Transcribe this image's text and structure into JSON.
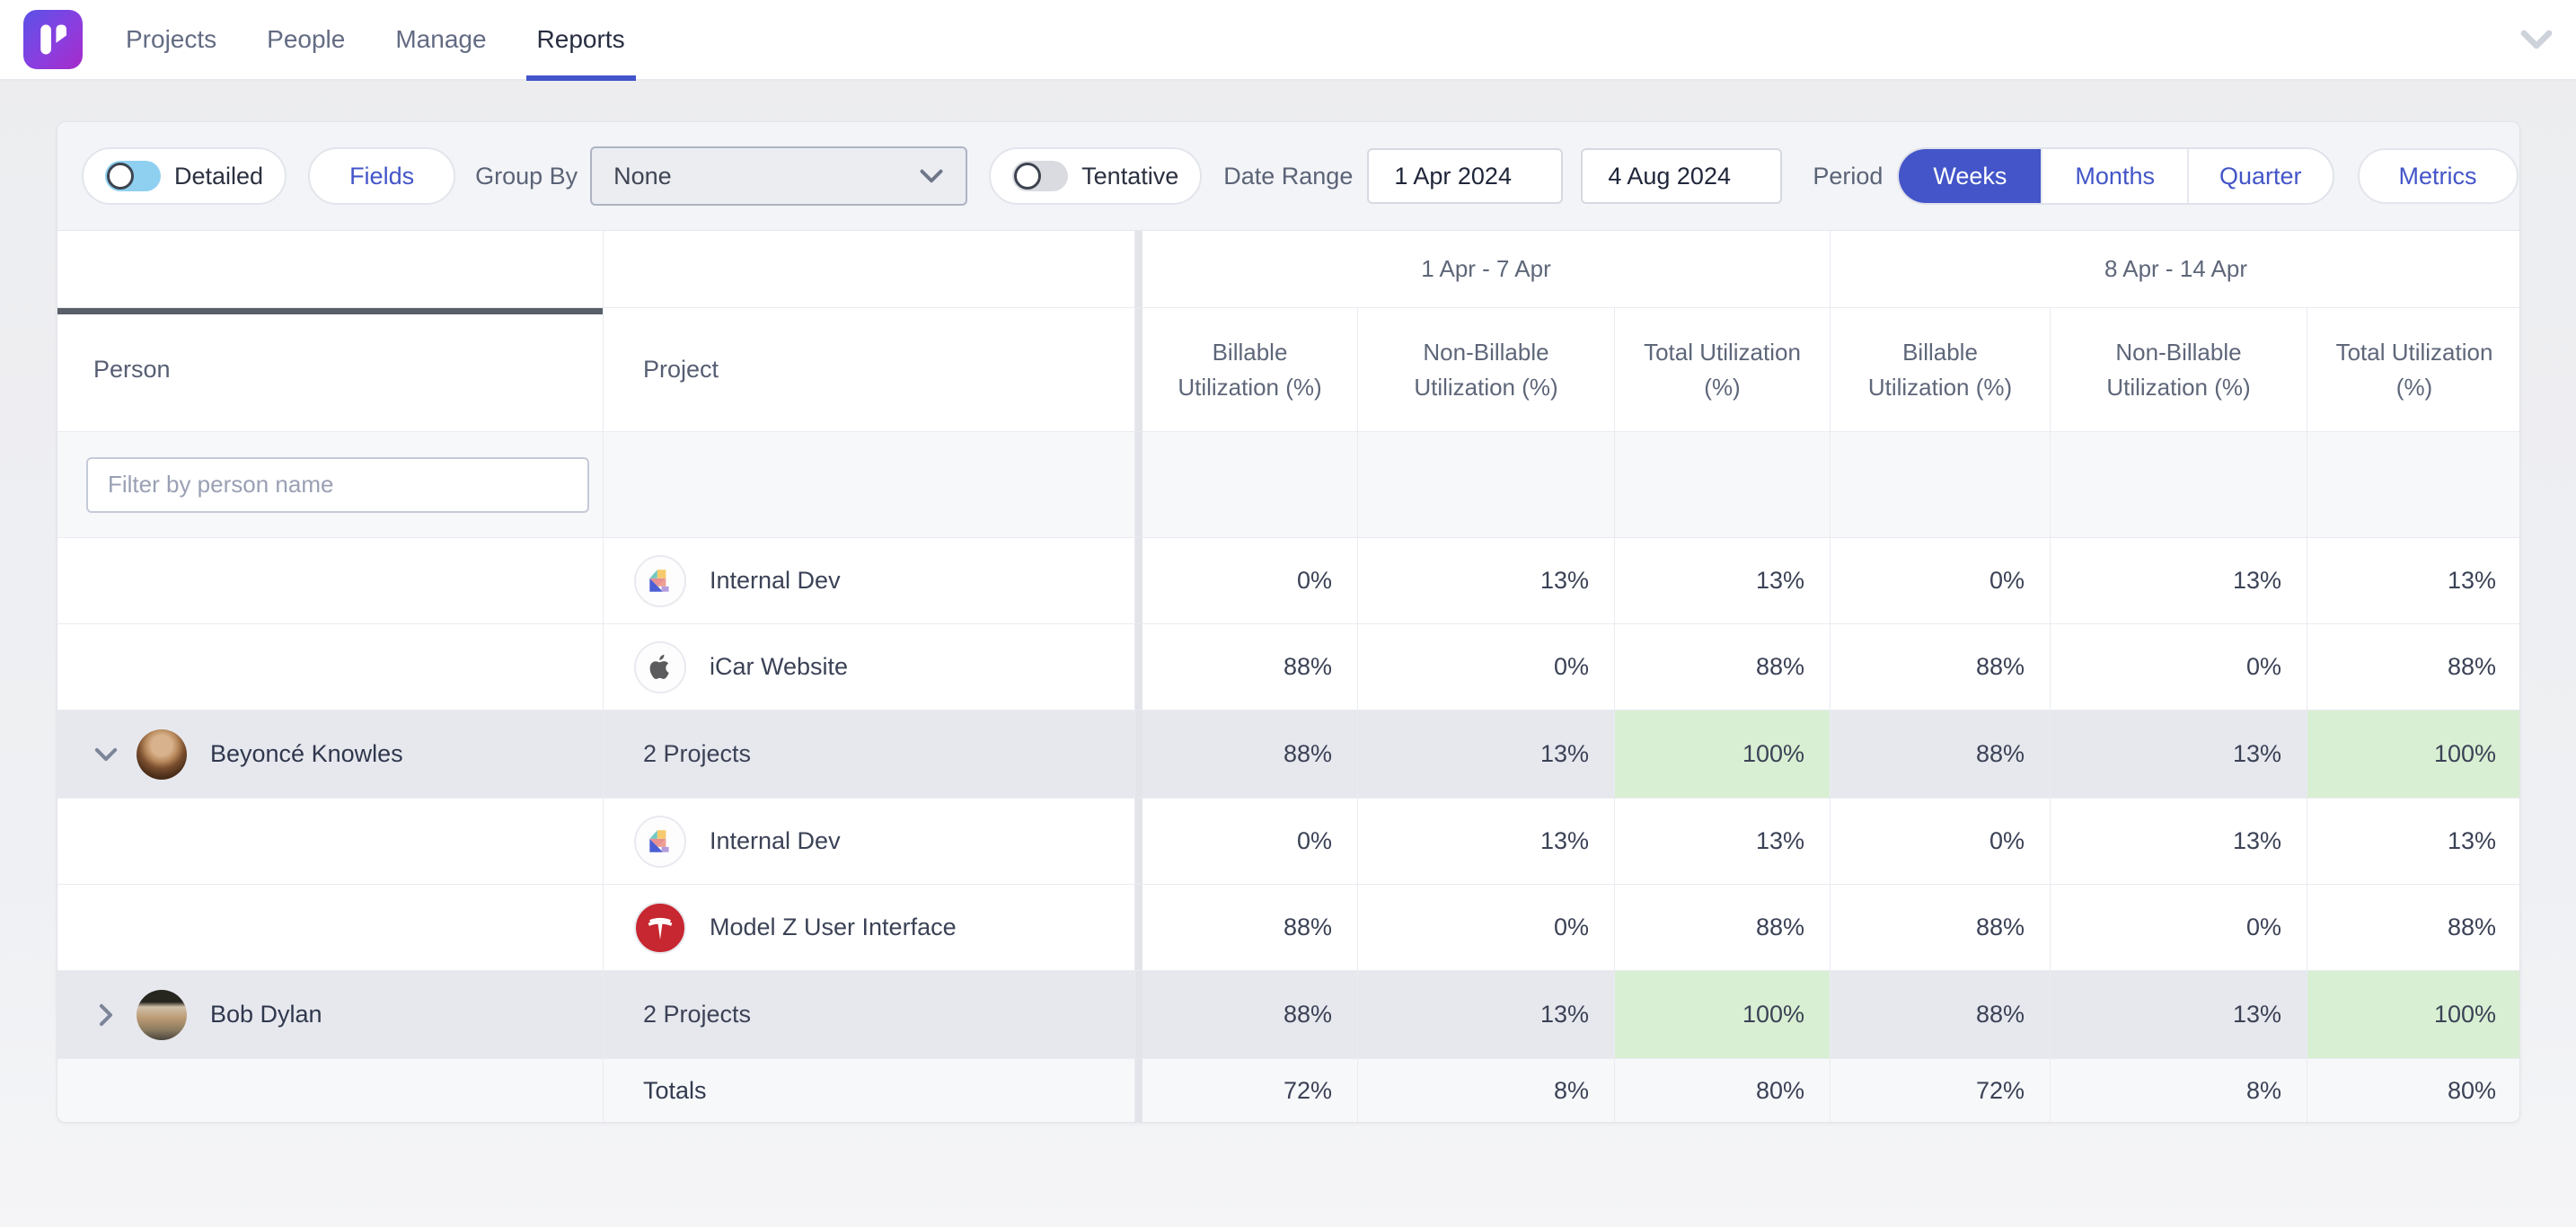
{
  "nav": {
    "items": [
      "Projects",
      "People",
      "Manage",
      "Reports"
    ],
    "active": "Reports",
    "logo": "runn-logo",
    "caret": "chevron-down-icon"
  },
  "toolbar": {
    "detailed_label": "Detailed",
    "detailed_on": true,
    "fields_label": "Fields",
    "group_by_label": "Group By",
    "group_by_value": "None",
    "tentative_label": "Tentative",
    "tentative_on": false,
    "date_range_label": "Date Range",
    "date_start": "1 Apr 2024",
    "date_end": "4 Aug 2024",
    "period_label": "Period",
    "period_options": [
      "Weeks",
      "Months",
      "Quarter"
    ],
    "period_active": "Weeks",
    "metrics_label": "Metrics"
  },
  "table": {
    "person_header": "Person",
    "project_header": "Project",
    "filter_placeholder": "Filter by person name",
    "week_groups": [
      "1 Apr - 7 Apr",
      "8 Apr - 14 Apr"
    ],
    "metric_headers": [
      "Billable Utilization (%)",
      "Non-Billable Utilization (%)",
      "Total Utilization (%)"
    ],
    "groups": [
      {
        "person": "Beyoncé Knowles",
        "avatar": "beyonce",
        "expanded": true,
        "projects_summary": "2 Projects",
        "summary_values": [
          "88%",
          "13%",
          "100%",
          "88%",
          "13%",
          "100%"
        ],
        "projects": [
          {
            "name": "Internal Dev",
            "icon": "internal-dev-icon",
            "values": [
              "0%",
              "13%",
              "13%",
              "0%",
              "13%",
              "13%"
            ]
          },
          {
            "name": "iCar Website",
            "icon": "apple-icon",
            "values": [
              "88%",
              "0%",
              "88%",
              "88%",
              "0%",
              "88%"
            ]
          }
        ]
      },
      {
        "person": "Bob Dylan",
        "avatar": "bob",
        "expanded": false,
        "projects_summary": "2 Projects",
        "summary_values": [
          "88%",
          "13%",
          "100%",
          "88%",
          "13%",
          "100%"
        ],
        "projects": [
          {
            "name": "Internal Dev",
            "icon": "internal-dev-icon",
            "values": [
              "0%",
              "13%",
              "13%",
              "0%",
              "13%",
              "13%"
            ]
          },
          {
            "name": "Model Z User Interface",
            "icon": "tesla-icon",
            "values": [
              "88%",
              "0%",
              "88%",
              "88%",
              "0%",
              "88%"
            ]
          }
        ]
      }
    ],
    "totals_label": "Totals",
    "totals": [
      "72%",
      "8%",
      "80%",
      "72%",
      "8%",
      "80%"
    ]
  },
  "colors": {
    "accent_blue": "#4355c8",
    "nav_underline": "#4355cb",
    "toggle_on": "#8fd0f1",
    "group_row_bg": "#e7e8ee",
    "total_highlight_green": "#d9efd3",
    "light_row_bg": "#f7f8fa",
    "header_text": "#5e6679",
    "logo_gradient_start": "#5a52e6",
    "logo_gradient_end": "#a62bc8"
  }
}
